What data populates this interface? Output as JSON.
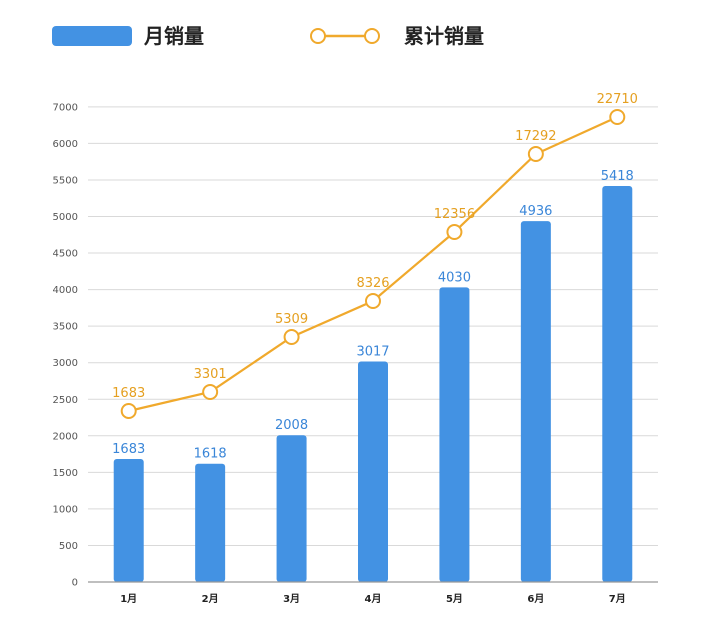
{
  "chart_data": {
    "type": "bar",
    "categories": [
      "1月",
      "2月",
      "3月",
      "4月",
      "5月",
      "6月",
      "7月"
    ],
    "series": [
      {
        "name": "月销量",
        "type": "bar",
        "values": [
          1683,
          1618,
          2008,
          3017,
          4030,
          4936,
          5418
        ],
        "color": "#4392e3"
      },
      {
        "name": "累计销量",
        "type": "line",
        "values": [
          1683,
          3301,
          5309,
          8326,
          12356,
          17292,
          22710
        ],
        "color": "#f0a92c"
      }
    ],
    "y_ticks": [
      "0",
      "500",
      "1000",
      "1500",
      "2000",
      "2500",
      "3000",
      "3500",
      "4000",
      "4500",
      "5000",
      "5500",
      "6000",
      "7000"
    ],
    "grid": true,
    "legend_position": "top-left"
  }
}
